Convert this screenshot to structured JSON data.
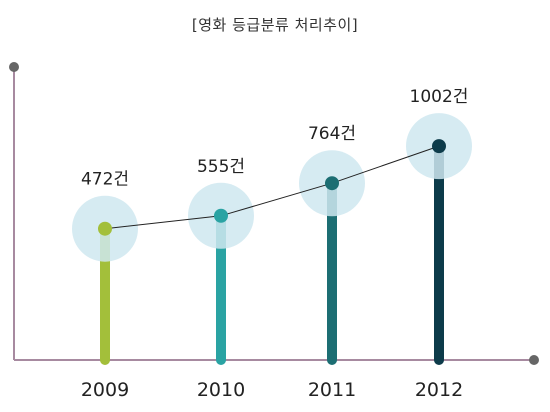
{
  "chart_data": {
    "type": "line",
    "title": "[영화 등급분류 처리추이]",
    "categories": [
      "2009",
      "2010",
      "2011",
      "2012"
    ],
    "series": [
      {
        "values": [
          472,
          555,
          764,
          1002
        ]
      }
    ],
    "data_labels": [
      "472건",
      "555건",
      "764건",
      "1002건"
    ],
    "colors": [
      "#a3bf3a",
      "#2aa3a3",
      "#1c6e73",
      "#0d3b4a"
    ],
    "axis_color": "#a78aa0",
    "ylim": [
      0,
      1250
    ],
    "grid": false,
    "legend": "none"
  }
}
